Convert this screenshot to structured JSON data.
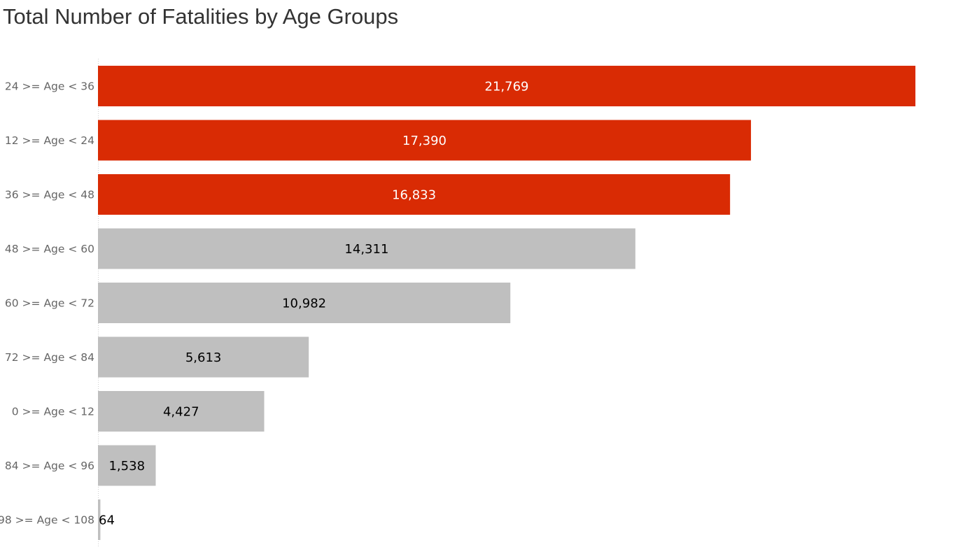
{
  "chart_data": {
    "type": "bar",
    "orientation": "horizontal",
    "title": "Total Number of Fatalities by Age Groups",
    "categories": [
      "24 >= Age < 36",
      "12 >= Age < 24",
      "36 >= Age < 48",
      "48 >= Age < 60",
      "60 >= Age < 72",
      "72 >= Age < 84",
      "0 >= Age < 12",
      "84 >= Age < 96",
      "98 >= Age < 108"
    ],
    "values": [
      21769,
      17390,
      16833,
      14311,
      10982,
      5613,
      4427,
      1538,
      64
    ],
    "value_labels": [
      "21,769",
      "17,390",
      "16,833",
      "14,311",
      "10,982",
      "5,613",
      "4,427",
      "1,538",
      "64"
    ],
    "highlight_top_n": 3,
    "highlight_color": "#D92B04",
    "base_color": "#BFBFBF",
    "highlight_label_color": "#FFFFFF",
    "base_label_color": "#000000",
    "xlabel": "",
    "ylabel": "",
    "xlim": [
      0,
      21769
    ],
    "grid": false,
    "legend": "none"
  }
}
